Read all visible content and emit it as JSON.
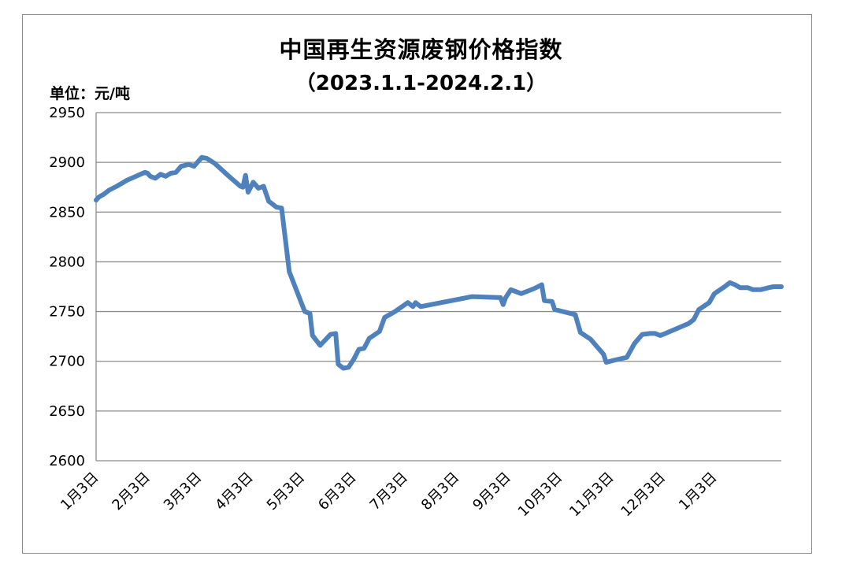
{
  "chart_data": {
    "type": "line",
    "title": "中国再生资源废钢价格指数",
    "subtitle": "（2023.1.1-2024.2.1）",
    "unit_label": "单位：元/吨",
    "xlabel": "",
    "ylabel": "",
    "ylim": [
      2600,
      2950
    ],
    "yticks": [
      "2950",
      "2900",
      "2850",
      "2800",
      "2750",
      "2700",
      "2650",
      "2600"
    ],
    "ytick_values": [
      2950,
      2900,
      2850,
      2800,
      2750,
      2700,
      2650,
      2600
    ],
    "grid": true,
    "legend": "none",
    "line_color": "#4f81bd",
    "categories": [
      "1月3日",
      "2月3日",
      "3月3日",
      "4月3日",
      "5月3日",
      "6月3日",
      "7月3日",
      "8月3日",
      "9月3日",
      "10月3日",
      "11月3日",
      "12月3日",
      "1月3日"
    ],
    "series": [
      {
        "values": [
          [
            0,
            2862
          ],
          [
            0.05,
            2865
          ],
          [
            0.15,
            2868
          ],
          [
            0.25,
            2872
          ],
          [
            0.4,
            2876
          ],
          [
            0.6,
            2882
          ],
          [
            0.95,
            2890
          ],
          [
            1.0,
            2889
          ],
          [
            1.05,
            2886
          ],
          [
            1.15,
            2884
          ],
          [
            1.25,
            2888
          ],
          [
            1.35,
            2886
          ],
          [
            1.45,
            2889
          ],
          [
            1.55,
            2890
          ],
          [
            1.65,
            2896
          ],
          [
            1.8,
            2898
          ],
          [
            1.9,
            2896
          ],
          [
            2.05,
            2905
          ],
          [
            2.15,
            2904
          ],
          [
            2.3,
            2899
          ],
          [
            2.6,
            2885
          ],
          [
            2.8,
            2876
          ],
          [
            2.85,
            2875
          ],
          [
            2.9,
            2887
          ],
          [
            2.95,
            2870
          ],
          [
            3.05,
            2880
          ],
          [
            3.15,
            2874
          ],
          [
            3.25,
            2876
          ],
          [
            3.35,
            2861
          ],
          [
            3.5,
            2855
          ],
          [
            3.6,
            2854
          ],
          [
            3.75,
            2790
          ],
          [
            4.05,
            2750
          ],
          [
            4.15,
            2748
          ],
          [
            4.2,
            2726
          ],
          [
            4.35,
            2716
          ],
          [
            4.55,
            2727
          ],
          [
            4.65,
            2728
          ],
          [
            4.7,
            2697
          ],
          [
            4.8,
            2693
          ],
          [
            4.9,
            2694
          ],
          [
            5.0,
            2702
          ],
          [
            5.1,
            2712
          ],
          [
            5.2,
            2713
          ],
          [
            5.3,
            2723
          ],
          [
            5.5,
            2730
          ],
          [
            5.6,
            2744
          ],
          [
            5.8,
            2750
          ],
          [
            6.05,
            2759
          ],
          [
            6.15,
            2755
          ],
          [
            6.2,
            2759
          ],
          [
            6.3,
            2755
          ],
          [
            7.3,
            2765
          ],
          [
            7.85,
            2764
          ],
          [
            7.9,
            2757
          ],
          [
            7.95,
            2764
          ],
          [
            8.05,
            2772
          ],
          [
            8.25,
            2768
          ],
          [
            8.5,
            2773
          ],
          [
            8.65,
            2777
          ],
          [
            8.7,
            2761
          ],
          [
            8.85,
            2760
          ],
          [
            8.9,
            2752
          ],
          [
            9.3,
            2747
          ],
          [
            9.4,
            2729
          ],
          [
            9.6,
            2722
          ],
          [
            9.85,
            2707
          ],
          [
            9.9,
            2699
          ],
          [
            10.05,
            2701
          ],
          [
            10.3,
            2704
          ],
          [
            10.45,
            2718
          ],
          [
            10.6,
            2727
          ],
          [
            10.75,
            2728
          ],
          [
            10.85,
            2728
          ],
          [
            10.95,
            2726
          ],
          [
            11.05,
            2728
          ],
          [
            11.5,
            2738
          ],
          [
            11.6,
            2742
          ],
          [
            11.7,
            2752
          ],
          [
            11.9,
            2759
          ],
          [
            12.0,
            2768
          ],
          [
            12.2,
            2775
          ],
          [
            12.3,
            2779
          ],
          [
            12.4,
            2777
          ],
          [
            12.5,
            2774
          ],
          [
            12.65,
            2774
          ],
          [
            12.75,
            2772
          ],
          [
            12.9,
            2772
          ],
          [
            13.05,
            2774
          ],
          [
            13.15,
            2775
          ],
          [
            13.3,
            2775
          ]
        ]
      }
    ]
  }
}
